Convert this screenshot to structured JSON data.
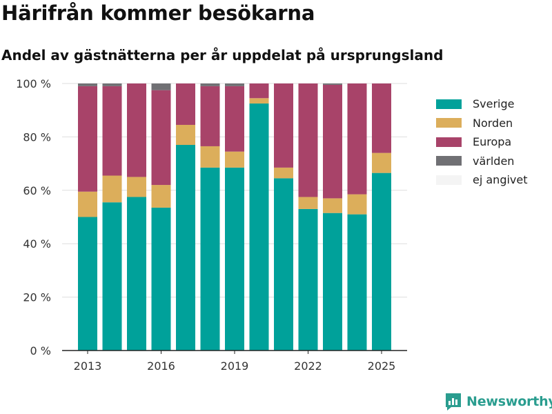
{
  "header": {
    "title": "Härifrån kommer besökarna",
    "subtitle": "Andel av gästnätterna per år uppdelat på ursprungsland"
  },
  "brand": {
    "label": "Newsworthy",
    "icon": "newsworthy-logo-icon"
  },
  "chart_data": {
    "type": "bar",
    "stacked": true,
    "title": "Härifrån kommer besökarna",
    "subtitle": "Andel av gästnätterna per år uppdelat på ursprungsland",
    "xlabel": "",
    "ylabel": "",
    "x": [
      2013,
      2014,
      2015,
      2016,
      2017,
      2018,
      2019,
      2020,
      2021,
      2022,
      2023,
      2024,
      2025
    ],
    "x_ticks": [
      "2013",
      "2016",
      "2019",
      "2022",
      "2025"
    ],
    "y_ticks": [
      "0 %",
      "20 %",
      "40 %",
      "60 %",
      "80 %",
      "100 %"
    ],
    "ylim": [
      0,
      100
    ],
    "grid": true,
    "legend_position": "right",
    "series": [
      {
        "name": "Sverige",
        "color": "#00a19a",
        "values": [
          50,
          55.5,
          57.5,
          53.5,
          77,
          68.5,
          68.5,
          92.5,
          64.5,
          53,
          51.5,
          51,
          66.5
        ]
      },
      {
        "name": "Norden",
        "color": "#dcae5b",
        "values": [
          9.5,
          10,
          7.5,
          8.5,
          7.5,
          8,
          6,
          2,
          4,
          4.5,
          5.5,
          7.5,
          7.5
        ]
      },
      {
        "name": "Europa",
        "color": "#a84369",
        "values": [
          39.5,
          33.5,
          35,
          35.5,
          15.5,
          22.5,
          24.5,
          5.5,
          31.5,
          42.5,
          42.5,
          41.5,
          26
        ]
      },
      {
        "name": "världen",
        "color": "#707074",
        "values": [
          1,
          1,
          0,
          2.5,
          0,
          1,
          1,
          0,
          0,
          0,
          0.5,
          0,
          0
        ]
      },
      {
        "name": "ej angivet",
        "color": "#f4f4f4",
        "values": [
          0,
          0,
          0,
          0,
          0,
          0,
          0,
          0,
          0,
          0,
          0,
          0,
          0
        ]
      }
    ]
  }
}
